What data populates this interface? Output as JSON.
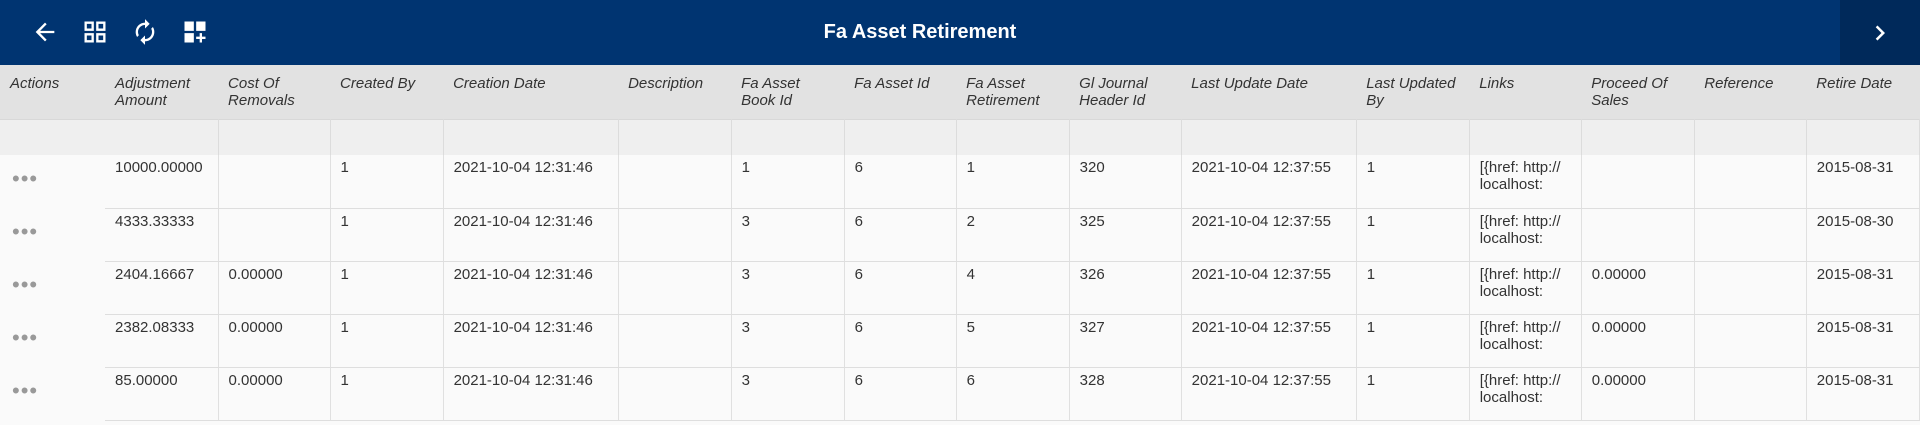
{
  "header": {
    "title": "Fa Asset Retirement"
  },
  "toolbar": {
    "icons": [
      "back-arrow-icon",
      "dashboard-icon",
      "refresh-icon",
      "add-widget-icon",
      "chevron-right-icon"
    ]
  },
  "colors": {
    "header_bg": "#003471",
    "header_dark": "#00295a",
    "column_header_bg": "#e2e2e2"
  },
  "table": {
    "columns": [
      "Actions",
      "Adjustment Amount",
      "Cost Of Removals",
      "Created By",
      "Creation Date",
      "Description",
      "Fa Asset Book Id",
      "Fa Asset Id",
      "Fa Asset Retirement",
      "Gl Journal Header Id",
      "Last Update Date",
      "Last Updated By",
      "Links",
      "Proceed Of Sales",
      "Reference",
      "Retire Date"
    ],
    "actions_glyph": "•••",
    "rows": [
      [
        "10000.00000",
        "",
        "1",
        "2021-10-04 12:31:46",
        "",
        "1",
        "6",
        "1",
        "320",
        "2021-10-04 12:37:55",
        "1",
        "[{href: http:// localhost:",
        "",
        "",
        "2015-08-31"
      ],
      [
        "4333.33333",
        "",
        "1",
        "2021-10-04 12:31:46",
        "",
        "3",
        "6",
        "2",
        "325",
        "2021-10-04 12:37:55",
        "1",
        "[{href: http:// localhost:",
        "",
        "",
        "2015-08-30"
      ],
      [
        "2404.16667",
        "0.00000",
        "1",
        "2021-10-04 12:31:46",
        "",
        "3",
        "6",
        "4",
        "326",
        "2021-10-04 12:37:55",
        "1",
        "[{href: http:// localhost:",
        "0.00000",
        "",
        "2015-08-31"
      ],
      [
        "2382.08333",
        "0.00000",
        "1",
        "2021-10-04 12:31:46",
        "",
        "3",
        "6",
        "5",
        "327",
        "2021-10-04 12:37:55",
        "1",
        "[{href: http:// localhost:",
        "0.00000",
        "",
        "2015-08-31"
      ],
      [
        "85.00000",
        "0.00000",
        "1",
        "2021-10-04 12:31:46",
        "",
        "3",
        "6",
        "6",
        "328",
        "2021-10-04 12:37:55",
        "1",
        "[{href: http:// localhost:",
        "0.00000",
        "",
        "2015-08-31"
      ]
    ]
  }
}
